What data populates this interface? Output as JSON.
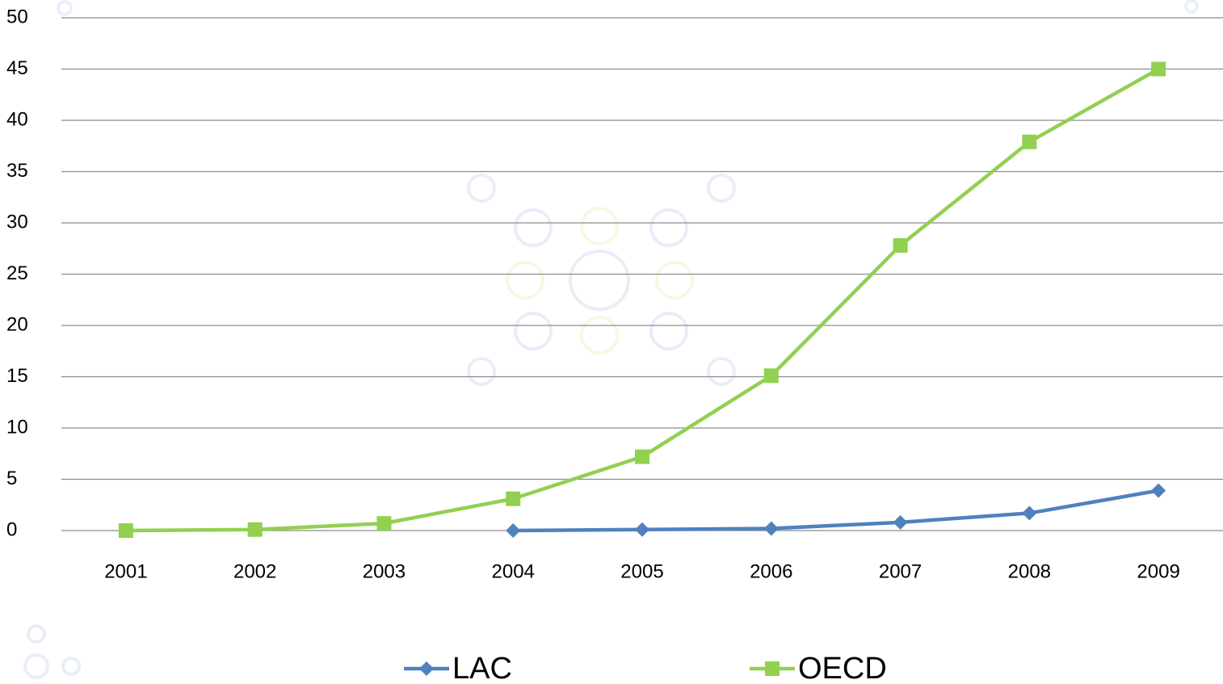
{
  "chart_data": {
    "type": "line",
    "categories": [
      "2001",
      "2002",
      "2003",
      "2004",
      "2005",
      "2006",
      "2007",
      "2008",
      "2009"
    ],
    "series": [
      {
        "name": "LAC",
        "color": "#4f81bd",
        "marker": "diamond",
        "values": [
          null,
          null,
          null,
          0,
          0.1,
          0.2,
          0.8,
          1.7,
          3.9
        ]
      },
      {
        "name": "OECD",
        "color": "#92d050",
        "marker": "square",
        "values": [
          0,
          0.1,
          0.7,
          3.1,
          7.2,
          15.1,
          27.8,
          37.9,
          45.0
        ]
      }
    ],
    "ylim": [
      0,
      50
    ],
    "yticks": [
      0,
      5,
      10,
      15,
      20,
      25,
      30,
      35,
      40,
      45,
      50
    ],
    "grid": true,
    "legend": "bottom"
  }
}
